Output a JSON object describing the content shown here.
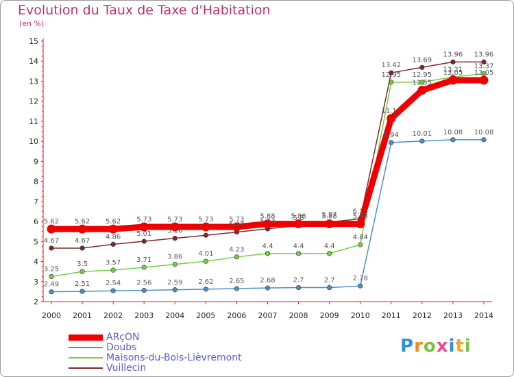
{
  "header": {
    "title": "Evolution du Taux de Taxe d'Habitation",
    "subtitle": "(en %)"
  },
  "logo": {
    "letters": [
      "P",
      "r",
      "o",
      "x",
      "i",
      "t",
      "i"
    ],
    "colors": [
      "#2f8fd8",
      "#f08a1c",
      "#7ac143",
      "#e84a8a",
      "#2f8fd8",
      "#f5a623",
      "#7ac143"
    ]
  },
  "chart_data": {
    "type": "line",
    "x": [
      "2000",
      "2001",
      "2002",
      "2003",
      "2004",
      "2005",
      "2006",
      "2007",
      "2008",
      "2009",
      "2010",
      "2011",
      "2012",
      "2013",
      "2014"
    ],
    "y_ticks": [
      "2",
      "3",
      "4",
      "5",
      "6",
      "7",
      "8",
      "9",
      "10",
      "11",
      "12",
      "13",
      "14",
      "15"
    ],
    "ylim": [
      2,
      15
    ],
    "grid": false,
    "legend_position": "bottom-left",
    "series": [
      {
        "name": "ARçON",
        "color": "#ee0000",
        "values": [
          5.62,
          5.62,
          5.62,
          5.73,
          5.73,
          5.73,
          5.73,
          5.88,
          5.88,
          5.88,
          5.88,
          11.14,
          12.55,
          13.05,
          13.05
        ],
        "labels": [
          "5.62",
          "5.62",
          "5.62",
          "5.73",
          "5.73",
          "5.73",
          "5.73",
          "5.88",
          "5.88",
          "5.88",
          "5.88",
          "11.14",
          "12.55",
          "13.05",
          "13.05"
        ]
      },
      {
        "name": "Doubs",
        "color": "#4a90c8",
        "values": [
          2.49,
          2.51,
          2.54,
          2.56,
          2.59,
          2.62,
          2.65,
          2.68,
          2.7,
          2.7,
          2.78,
          9.94,
          10.01,
          10.08,
          10.08
        ],
        "labels": [
          "2.49",
          "2.51",
          "2.54",
          "2.56",
          "2.59",
          "2.62",
          "2.65",
          "2.68",
          "2.7",
          "2.7",
          "2.78",
          "9.94",
          "10.01",
          "10.08",
          "10.08"
        ]
      },
      {
        "name": "Maisons-du-Bois-Lièvremont",
        "color": "#77cc44",
        "values": [
          3.25,
          3.5,
          3.57,
          3.71,
          3.86,
          4.01,
          4.23,
          4.4,
          4.4,
          4.4,
          4.84,
          12.95,
          12.95,
          13.21,
          13.37
        ],
        "labels": [
          "3.25",
          "3.5",
          "3.57",
          "3.71",
          "3.86",
          "4.01",
          "4.23",
          "4.4",
          "4.4",
          "4.4",
          "4.84",
          "12.95",
          "12.95",
          "13.21",
          "13.37"
        ]
      },
      {
        "name": "Vuillecin",
        "color": "#7a2a2a",
        "values": [
          4.67,
          4.67,
          4.86,
          5.01,
          5.16,
          5.31,
          5.47,
          5.63,
          5.8,
          5.97,
          6.13,
          13.42,
          13.69,
          13.96,
          13.96
        ],
        "labels": [
          "4.67",
          "4.67",
          "4.86",
          "5.01",
          "5.16",
          "5.31",
          "5.47",
          "5.63",
          "5.8",
          "5.97",
          "6.13",
          "13.42",
          "13.69",
          "13.96",
          "13.96"
        ]
      }
    ]
  }
}
